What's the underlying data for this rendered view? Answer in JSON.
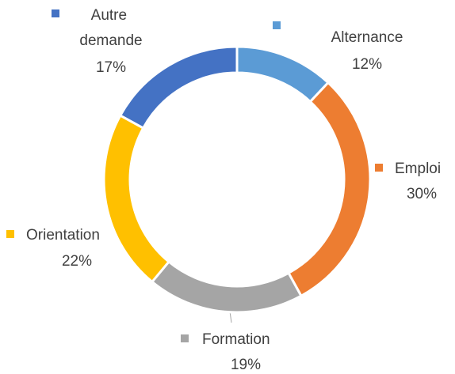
{
  "chart_data": {
    "type": "donut",
    "categories": [
      "Alternance",
      "Emploi",
      "Formation",
      "Orientation",
      "Autre demande"
    ],
    "values": [
      12,
      30,
      19,
      22,
      17
    ],
    "value_labels": [
      "12%",
      "30%",
      "19%",
      "22%",
      "17%"
    ],
    "colors": [
      "#5b9bd5",
      "#ed7d31",
      "#a5a5a5",
      "#ffc000",
      "#4472c4"
    ]
  }
}
